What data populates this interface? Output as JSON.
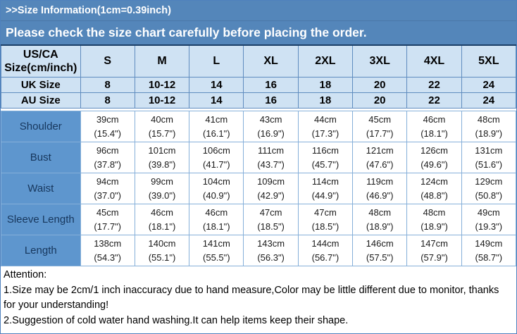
{
  "banner": {
    "line1": ">>Size Information(1cm=0.39inch)",
    "line2": "Please check the size chart carefully before placing the order."
  },
  "colors": {
    "banner_blue": "#5486ba",
    "header_light_blue": "#cfe2f3",
    "row_label_blue": "#5e96ce",
    "table_border_blue": "#5f8cbf",
    "body_border_blue": "#85afd9",
    "dark_top_border": "#1b3e66",
    "banner_text": "#ffffff"
  },
  "table": {
    "corner_header": "US/CA\nSize(cm/inch)",
    "size_columns": [
      "S",
      "M",
      "L",
      "XL",
      "2XL",
      "3XL",
      "4XL",
      "5XL"
    ],
    "uk_row": {
      "label": "UK Size",
      "values": [
        "8",
        "10-12",
        "14",
        "16",
        "18",
        "20",
        "22",
        "24"
      ]
    },
    "au_row": {
      "label": "AU Size",
      "values": [
        "8",
        "10-12",
        "14",
        "16",
        "18",
        "20",
        "22",
        "24"
      ]
    },
    "measurements": [
      {
        "label": "Shoulder",
        "values": [
          "39cm\n(15.4\")",
          "40cm\n(15.7\")",
          "41cm\n(16.1\")",
          "43cm\n(16.9\")",
          "44cm\n(17.3\")",
          "45cm\n(17.7\")",
          "46cm\n(18.1\")",
          "48cm\n(18.9\")"
        ]
      },
      {
        "label": "Bust",
        "values": [
          "96cm\n(37.8\")",
          "101cm\n(39.8\")",
          "106cm\n(41.7\")",
          "111cm\n(43.7\")",
          "116cm\n(45.7\")",
          "121cm\n(47.6\")",
          "126cm\n(49.6\")",
          "131cm\n(51.6\")"
        ]
      },
      {
        "label": "Waist",
        "values": [
          "94cm\n(37.0\")",
          "99cm\n(39.0\")",
          "104cm\n(40.9\")",
          "109cm\n(42.9\")",
          "114cm\n(44.9\")",
          "119cm\n(46.9\")",
          "124cm\n(48.8\")",
          "129cm\n(50.8\")"
        ]
      },
      {
        "label": "Sleeve Length",
        "values": [
          "45cm\n(17.7\")",
          "46cm\n(18.1\")",
          "46cm\n(18.1\")",
          "47cm\n(18.5\")",
          "47cm\n(18.5\")",
          "48cm\n(18.9\")",
          "48cm\n(18.9\")",
          "49cm\n(19.3\")"
        ]
      },
      {
        "label": "Length",
        "values": [
          "138cm\n(54.3\")",
          "140cm\n(55.1\")",
          "141cm\n(55.5\")",
          "143cm\n(56.3\")",
          "144cm\n(56.7\")",
          "146cm\n(57.5\")",
          "147cm\n(57.9\")",
          "149cm\n(58.7\")"
        ]
      }
    ]
  },
  "attention": {
    "title": "Attention:",
    "line1": "1.Size may be 2cm/1 inch inaccuracy due to hand measure,Color may be little different due to monitor, thanks for your understanding!",
    "line2": "2.Suggestion of cold water hand washing.It can help items keep their shape."
  }
}
